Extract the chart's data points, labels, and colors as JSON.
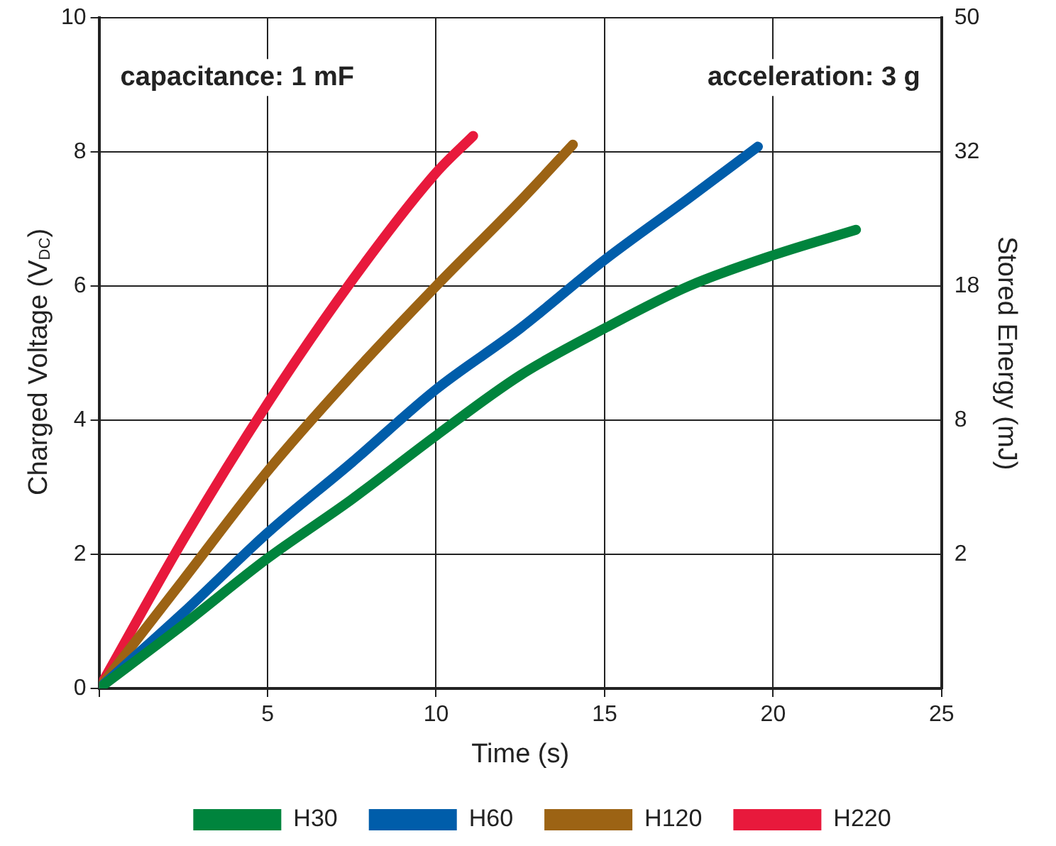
{
  "chart_data": {
    "type": "line",
    "xlabel": "Time (s)",
    "ylabel": "Charged Voltage (V$_{DC}$)",
    "y2label": "Stored Energy (mJ)",
    "annotations": [
      "capacitance: 1 mF",
      "acceleration: 3 g"
    ],
    "xlim": [
      0,
      25
    ],
    "xticks": [
      {
        "value": 0,
        "label": null
      },
      5,
      10,
      15,
      20,
      25
    ],
    "ylim": [
      0,
      10
    ],
    "yticks": [
      0,
      2,
      4,
      6,
      8,
      10
    ],
    "y2_categories": [
      "50",
      "32",
      "18",
      "8",
      "2",
      null
    ],
    "grid": true,
    "legend": "bottom",
    "marker": "none",
    "line_style": "solid",
    "series": [
      {
        "name": "H30",
        "color": "#00843d",
        "x": [
          0,
          2.5,
          5,
          7.5,
          10,
          12.5,
          15,
          17.5,
          20,
          22.46
        ],
        "values": [
          0,
          0.95,
          1.94,
          2.82,
          3.77,
          4.67,
          5.37,
          6.0,
          6.46,
          6.84
        ]
      },
      {
        "name": "H60",
        "color": "#005daa",
        "x": [
          0,
          2.5,
          5,
          7.5,
          10,
          12.5,
          15,
          17.5,
          19.55
        ],
        "values": [
          0,
          1.13,
          2.32,
          3.37,
          4.46,
          5.37,
          6.39,
          7.31,
          8.08
        ]
      },
      {
        "name": "H120",
        "color": "#9c6314",
        "x": [
          0,
          2.5,
          5,
          7.5,
          10,
          12.5,
          14.06
        ],
        "values": [
          0,
          1.62,
          3.24,
          4.67,
          6.0,
          7.27,
          8.11
        ]
      },
      {
        "name": "H220",
        "color": "#e8193c",
        "x": [
          0,
          2.5,
          5,
          7.5,
          10,
          11.1
        ],
        "values": [
          0,
          2.22,
          4.25,
          6.08,
          7.69,
          8.24
        ]
      }
    ]
  }
}
